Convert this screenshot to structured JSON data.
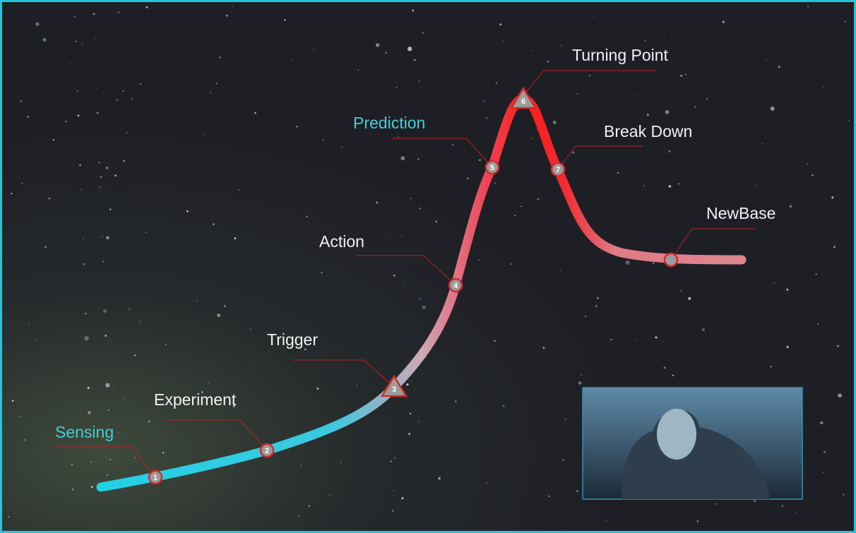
{
  "nodes": [
    {
      "number": "1",
      "label": "Sensing"
    },
    {
      "number": "2",
      "label": "Experiment"
    },
    {
      "number": "3",
      "label": "Trigger"
    },
    {
      "number": "4",
      "label": "Action"
    },
    {
      "number": "5",
      "label": "Prediction"
    },
    {
      "number": "6",
      "label": "Turning Point"
    },
    {
      "number": "7",
      "label": "Break Down"
    },
    {
      "label": "NewBase"
    }
  ]
}
